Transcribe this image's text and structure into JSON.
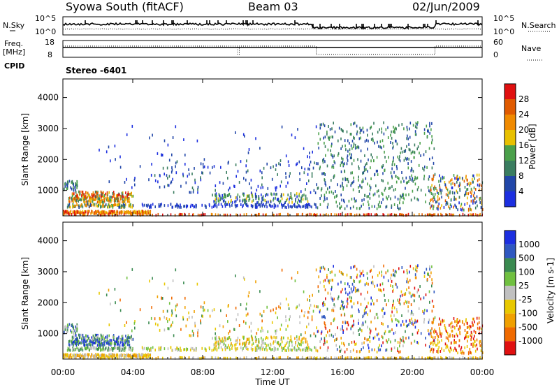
{
  "header": {
    "station": "Syowa South (fitACF)",
    "beam": "Beam 03",
    "date": "02/Jun/2009"
  },
  "noise_panel": {
    "left_label": "N.Sky",
    "right_label": "N.Search",
    "left_ticks": [
      "10^5",
      "10^0"
    ],
    "right_ticks": [
      "10^5",
      "10^0"
    ]
  },
  "freq_panel": {
    "left_label_line1": "Freq.",
    "left_label_line2": "[MHz]",
    "left_ticks": [
      "18",
      "8"
    ],
    "right_ticks": [
      "60",
      "0"
    ],
    "right_label": "Nave",
    "cpid_label": "CPID",
    "cpid_value": "Stereo -6401"
  },
  "colors": {
    "power": [
      "#1c2fe0",
      "#2146a8",
      "#3a7d60",
      "#4aa04a",
      "#e8c000",
      "#f08a00",
      "#e05a00",
      "#e01010"
    ],
    "velocity": [
      "#e01010",
      "#f06a00",
      "#f0a000",
      "#e8c800",
      "#c0c0c0",
      "#70c040",
      "#3a8a50",
      "#2f58c0",
      "#1c2fe0"
    ]
  },
  "chart_data": [
    {
      "type": "heatmap",
      "title": "Power",
      "ylabel": "Slant Range [km]",
      "xlabel": "Time UT",
      "x_ticks": [
        "00:00",
        "04:00",
        "08:00",
        "12:00",
        "16:00",
        "20:00",
        "00:00"
      ],
      "y_ticks": [
        "1000",
        "2000",
        "3000",
        "4000"
      ],
      "ylim": [
        180,
        4600
      ],
      "colorbar_label": "Power [dB]",
      "colorbar_ticks": [
        "4",
        "8",
        "12",
        "16",
        "20",
        "24",
        "28"
      ]
    },
    {
      "type": "heatmap",
      "title": "Velocity",
      "ylabel": "Slant Range [km]",
      "xlabel": "Time UT",
      "x_ticks": [
        "00:00",
        "04:00",
        "08:00",
        "12:00",
        "16:00",
        "20:00",
        "00:00"
      ],
      "y_ticks": [
        "1000",
        "2000",
        "3000",
        "4000"
      ],
      "ylim": [
        180,
        4600
      ],
      "colorbar_label": "Velocity [m s-1]",
      "colorbar_ticks": [
        "1000",
        "500",
        "100",
        "25",
        "-25",
        "-100",
        "-500",
        "-1000"
      ]
    }
  ],
  "xaxis_label": "Time UT"
}
